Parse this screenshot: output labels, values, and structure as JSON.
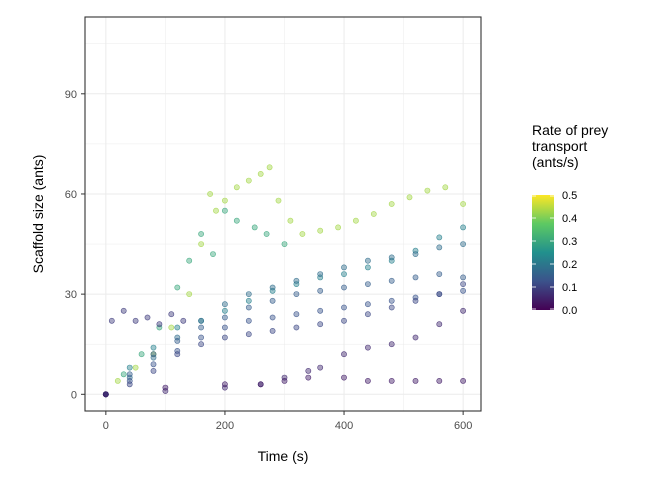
{
  "chart_data": {
    "type": "scatter",
    "title": "",
    "xlabel": "Time (s)",
    "ylabel": "Scaffold size (ants)",
    "xlim": [
      -35,
      630
    ],
    "ylim": [
      -5,
      113
    ],
    "x_ticks": [
      0,
      200,
      400,
      600
    ],
    "y_ticks": [
      0,
      30,
      60,
      90
    ],
    "grid": true,
    "legend": {
      "title_lines": [
        "Rate of prey",
        "transport",
        "(ants/s)"
      ],
      "placement": "right",
      "breaks": [
        0.5,
        0.4,
        0.3,
        0.2,
        0.1,
        0.0
      ],
      "break_labels": [
        "0.5",
        "0.4",
        "0.3",
        "0.2",
        "0.1",
        "0.0"
      ],
      "range": [
        0,
        0.5
      ]
    },
    "colors": {
      "low": "#440154",
      "mid_low": "#3b528b",
      "mid": "#21908d",
      "mid_high": "#5dc963",
      "high": "#fde725",
      "grid": "#ebebeb",
      "panel_border": "#333333"
    },
    "series": [
      {
        "rate": 0.43,
        "x": [
          0,
          20,
          50,
          80,
          110,
          140,
          160,
          175,
          185,
          200,
          220,
          240,
          260,
          275,
          290,
          310,
          330,
          360,
          390,
          420,
          450,
          480,
          510,
          540,
          570,
          600
        ],
        "y": [
          0,
          4,
          8,
          12,
          20,
          30,
          45,
          60,
          55,
          58,
          62,
          64,
          66,
          68,
          58,
          52,
          48,
          49,
          50,
          52,
          54,
          57,
          59,
          61,
          62,
          57
        ]
      },
      {
        "rate": 0.3,
        "x": [
          0,
          30,
          60,
          90,
          120,
          140,
          160,
          180,
          200,
          220,
          250,
          270,
          300
        ],
        "y": [
          0,
          6,
          12,
          20,
          32,
          40,
          48,
          42,
          55,
          52,
          50,
          48,
          45
        ]
      },
      {
        "rate": 0.22,
        "x": [
          0,
          40,
          80,
          120,
          160,
          200,
          240,
          280,
          320,
          360,
          400,
          440,
          480,
          520,
          560,
          600
        ],
        "y": [
          0,
          8,
          14,
          20,
          22,
          25,
          28,
          31,
          33,
          35,
          36,
          38,
          40,
          43,
          47,
          50
        ]
      },
      {
        "rate": 0.18,
        "x": [
          0,
          40,
          80,
          120,
          160,
          200,
          240,
          280,
          320,
          360,
          400,
          440,
          480,
          520,
          560,
          600
        ],
        "y": [
          0,
          5,
          11,
          17,
          22,
          27,
          30,
          32,
          34,
          36,
          38,
          40,
          41,
          42,
          44,
          45
        ]
      },
      {
        "rate": 0.15,
        "x": [
          0,
          40,
          80,
          120,
          160,
          200,
          240,
          280,
          320,
          360,
          400,
          440,
          480,
          520,
          560,
          600
        ],
        "y": [
          0,
          6,
          12,
          16,
          20,
          23,
          26,
          28,
          30,
          31,
          32,
          33,
          34,
          35,
          36,
          35
        ]
      },
      {
        "rate": 0.13,
        "x": [
          0,
          40,
          80,
          120,
          160,
          200,
          240,
          280,
          320,
          360,
          400,
          440,
          480,
          520,
          560,
          600
        ],
        "y": [
          0,
          4,
          9,
          13,
          17,
          20,
          22,
          23,
          24,
          25,
          26,
          27,
          28,
          29,
          30,
          31
        ]
      },
      {
        "rate": 0.11,
        "x": [
          0,
          40,
          80,
          120,
          160,
          200,
          240,
          280,
          320,
          360,
          400,
          440,
          480,
          520,
          560,
          600
        ],
        "y": [
          0,
          3,
          7,
          12,
          15,
          17,
          18,
          19,
          20,
          21,
          22,
          24,
          26,
          28,
          30,
          33
        ]
      },
      {
        "rate": 0.09,
        "x": [
          10,
          30,
          50,
          70,
          90,
          110,
          130
        ],
        "y": [
          22,
          25,
          22,
          23,
          21,
          24,
          22
        ]
      },
      {
        "rate": 0.06,
        "x": [
          0,
          100,
          200,
          260,
          300,
          340,
          360,
          400,
          440,
          480,
          520,
          560,
          600
        ],
        "y": [
          0,
          1,
          2,
          3,
          5,
          7,
          8,
          12,
          14,
          15,
          17,
          21,
          25
        ]
      },
      {
        "rate": 0.04,
        "x": [
          0,
          100,
          200,
          260,
          300,
          340,
          400,
          440,
          480,
          520,
          560,
          600
        ],
        "y": [
          0,
          2,
          3,
          3,
          4,
          5,
          5,
          4,
          4,
          4,
          4,
          4
        ]
      }
    ]
  }
}
